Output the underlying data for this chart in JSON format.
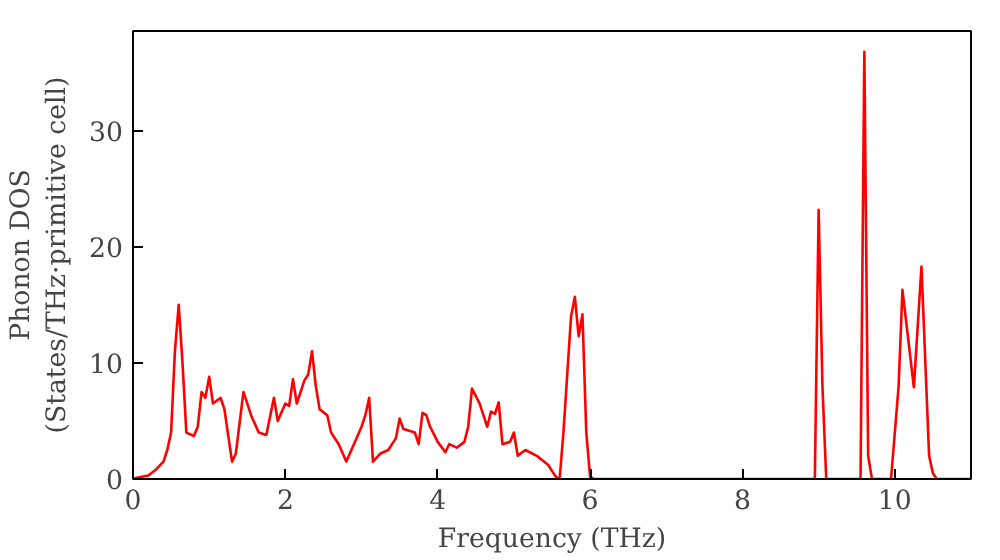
{
  "chart_data": {
    "type": "line",
    "xlabel": "Frequency (THz)",
    "ylabel": "Phonon DOS\n(States/THz·primitive cell)",
    "xlim": [
      0,
      11
    ],
    "ylim": [
      0,
      38.6
    ],
    "xticks": [
      0,
      2,
      4,
      6,
      8,
      10
    ],
    "yticks": [
      0,
      10,
      20,
      30
    ],
    "grid": false,
    "series": [
      {
        "color": "#ff0000",
        "x": [
          0,
          0.05,
          0.2,
          0.3,
          0.4,
          0.45,
          0.5,
          0.55,
          0.6,
          0.65,
          0.7,
          0.8,
          0.85,
          0.9,
          0.95,
          1.0,
          1.05,
          1.15,
          1.2,
          1.3,
          1.35,
          1.45,
          1.55,
          1.65,
          1.75,
          1.85,
          1.9,
          2.0,
          2.05,
          2.1,
          2.15,
          2.25,
          2.3,
          2.35,
          2.4,
          2.45,
          2.55,
          2.6,
          2.7,
          2.8,
          2.9,
          3.0,
          3.05,
          3.1,
          3.15,
          3.25,
          3.35,
          3.45,
          3.5,
          3.55,
          3.7,
          3.75,
          3.8,
          3.85,
          3.9,
          4.0,
          4.1,
          4.15,
          4.25,
          4.35,
          4.4,
          4.45,
          4.55,
          4.65,
          4.7,
          4.75,
          4.8,
          4.85,
          4.95,
          5.0,
          5.05,
          5.15,
          5.3,
          5.45,
          5.55,
          5.6,
          5.65,
          5.75,
          5.8,
          5.85,
          5.9,
          5.95,
          6.0,
          6.05,
          8.95,
          9.0,
          9.05,
          9.1,
          9.55,
          9.6,
          9.65,
          9.7,
          9.95,
          10.05,
          10.1,
          10.25,
          10.35,
          10.45,
          10.5,
          10.55,
          11
        ],
        "values": [
          0,
          0.1,
          0.3,
          0.8,
          1.5,
          2.5,
          4,
          11,
          15,
          10,
          4,
          3.7,
          4.5,
          7.5,
          7,
          8.8,
          6.5,
          7,
          6,
          1.5,
          2.2,
          7.5,
          5.5,
          4,
          3.8,
          7,
          5,
          6.5,
          6.3,
          8.6,
          6.5,
          8.5,
          9,
          11,
          8,
          6,
          5.5,
          4,
          3,
          1.5,
          3,
          4.5,
          5.5,
          7,
          1.5,
          2.2,
          2.5,
          3.5,
          5.2,
          4.3,
          4,
          3,
          5.7,
          5.5,
          4.5,
          3.2,
          2.3,
          3,
          2.7,
          3.2,
          4.5,
          7.8,
          6.5,
          4.5,
          5.8,
          5.6,
          6.6,
          3,
          3.2,
          4,
          2,
          2.5,
          2,
          1.2,
          0.2,
          0,
          4,
          14,
          15.7,
          12.3,
          14.2,
          4,
          0.2,
          0,
          0,
          23.2,
          8,
          0,
          0,
          36.8,
          2,
          0,
          0,
          8,
          16.3,
          7.9,
          18.3,
          2,
          0.5,
          0,
          0
        ]
      }
    ]
  }
}
